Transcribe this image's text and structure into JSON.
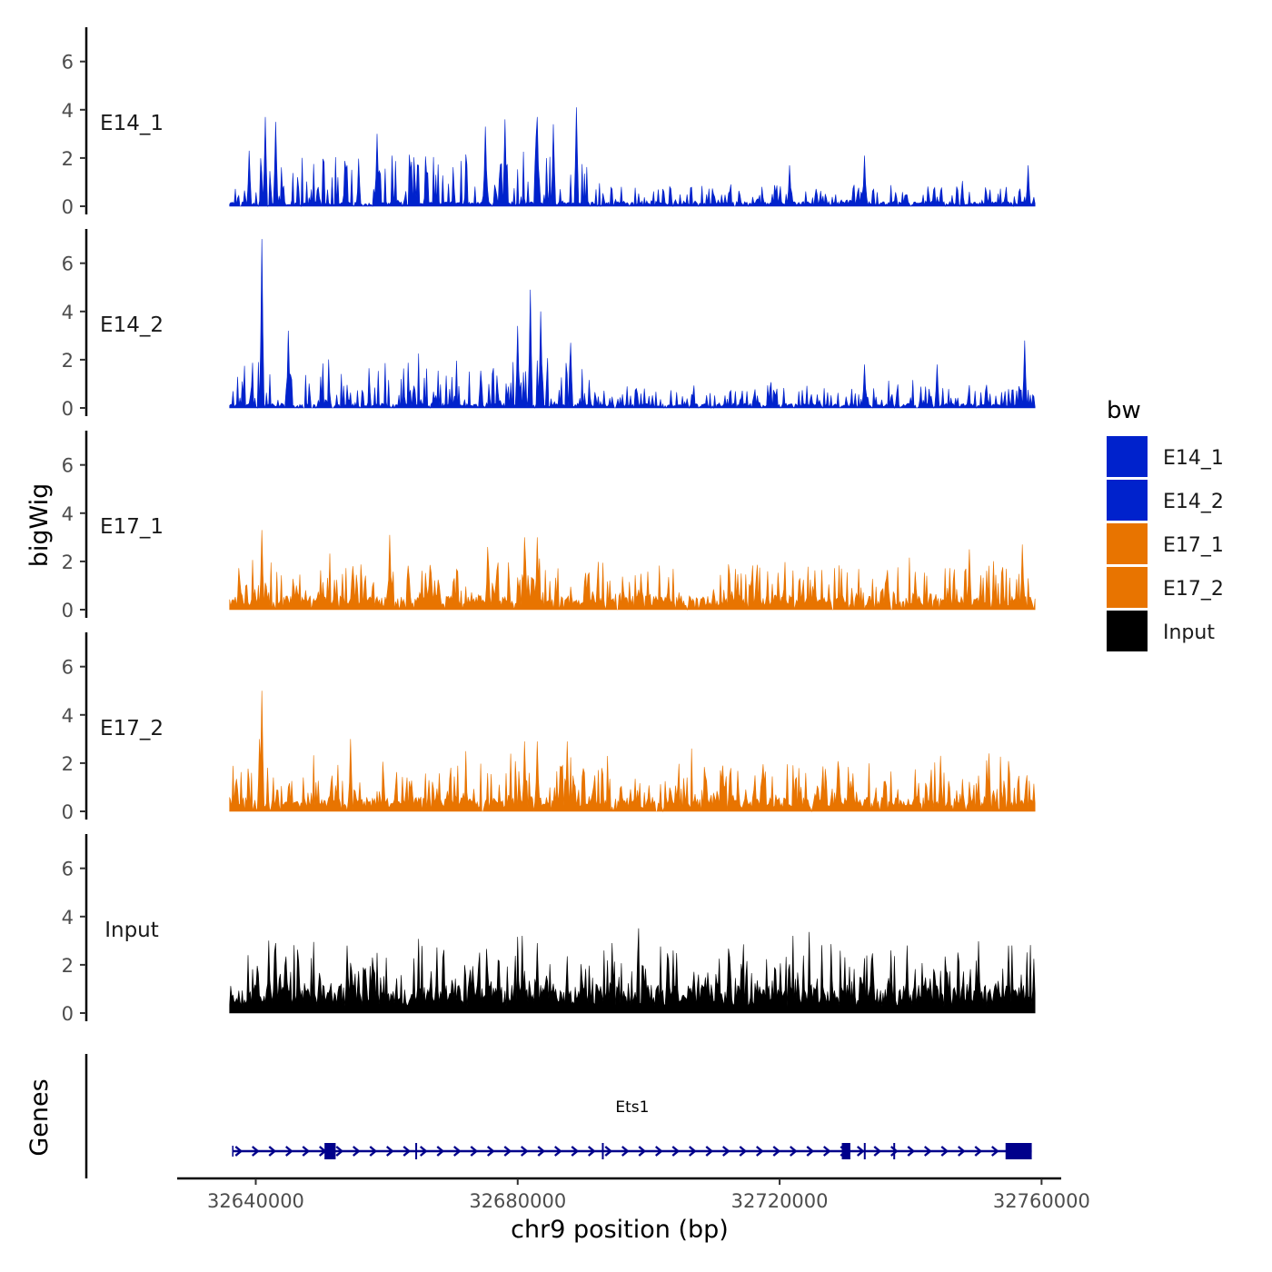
{
  "chart_data": {
    "type": "area",
    "x_axis": {
      "label": "chr9 position (bp)",
      "range": [
        32628000,
        32763000
      ],
      "ticks": [
        32640000,
        32680000,
        32720000,
        32760000
      ],
      "tick_labels": [
        "32640000",
        "32680000",
        "32720000",
        "32760000"
      ]
    },
    "y_axis": {
      "label": "bigWig",
      "range": [
        0,
        7.3
      ],
      "ticks": [
        0,
        2,
        4,
        6
      ],
      "tick_labels": [
        "0",
        "2",
        "4",
        "6"
      ]
    },
    "data_start": 32636000,
    "data_end": 32759000,
    "legend": {
      "title": "bw",
      "position": "right",
      "entries": [
        {
          "label": "E14_1",
          "color": "#0022cc"
        },
        {
          "label": "E14_2",
          "color": "#0022cc"
        },
        {
          "label": "E17_1",
          "color": "#e87400"
        },
        {
          "label": "E17_2",
          "color": "#e87400"
        },
        {
          "label": "Input",
          "color": "#000000"
        }
      ]
    },
    "tracks": [
      {
        "name": "E14_1",
        "color": "#0022cc",
        "baseline": 0.15,
        "noise": 1.0,
        "seed": 11,
        "peaks": [
          {
            "x": 32641500,
            "y": 3.7
          },
          {
            "x": 32643000,
            "y": 3.5
          },
          {
            "x": 32639000,
            "y": 2.3
          },
          {
            "x": 32658500,
            "y": 3.0
          },
          {
            "x": 32675000,
            "y": 3.3
          },
          {
            "x": 32678000,
            "y": 3.6
          },
          {
            "x": 32683000,
            "y": 3.7
          },
          {
            "x": 32685500,
            "y": 3.4
          },
          {
            "x": 32689000,
            "y": 4.1
          },
          {
            "x": 32721500,
            "y": 1.7
          },
          {
            "x": 32733000,
            "y": 2.1
          },
          {
            "x": 32758000,
            "y": 1.7
          }
        ],
        "active_regions": [
          [
            32636000,
            32691000,
            1.0
          ],
          [
            32691000,
            32759000,
            0.35
          ]
        ]
      },
      {
        "name": "E14_2",
        "color": "#0022cc",
        "baseline": 0.15,
        "noise": 1.0,
        "seed": 23,
        "peaks": [
          {
            "x": 32641000,
            "y": 7.0
          },
          {
            "x": 32645000,
            "y": 3.2
          },
          {
            "x": 32682000,
            "y": 4.9
          },
          {
            "x": 32683500,
            "y": 4.0
          },
          {
            "x": 32680000,
            "y": 3.4
          },
          {
            "x": 32688000,
            "y": 2.7
          },
          {
            "x": 32757500,
            "y": 2.8
          },
          {
            "x": 32733000,
            "y": 1.8
          },
          {
            "x": 32744000,
            "y": 1.8
          }
        ],
        "active_regions": [
          [
            32636000,
            32690000,
            0.9
          ],
          [
            32690000,
            32759000,
            0.4
          ]
        ]
      },
      {
        "name": "E17_1",
        "color": "#e87400",
        "baseline": 0.45,
        "noise": 0.9,
        "seed": 37,
        "peaks": [
          {
            "x": 32641000,
            "y": 3.3
          },
          {
            "x": 32660500,
            "y": 3.1
          },
          {
            "x": 32681000,
            "y": 3.0
          },
          {
            "x": 32683000,
            "y": 3.0
          },
          {
            "x": 32675500,
            "y": 2.6
          },
          {
            "x": 32749000,
            "y": 2.5
          },
          {
            "x": 32757000,
            "y": 2.7
          }
        ],
        "active_regions": [
          [
            32636000,
            32759000,
            0.85
          ]
        ]
      },
      {
        "name": "E17_2",
        "color": "#e87400",
        "baseline": 0.45,
        "noise": 0.9,
        "seed": 41,
        "peaks": [
          {
            "x": 32641000,
            "y": 5.0
          },
          {
            "x": 32640500,
            "y": 3.0
          },
          {
            "x": 32654500,
            "y": 3.0
          },
          {
            "x": 32683000,
            "y": 2.9
          },
          {
            "x": 32681000,
            "y": 2.9
          },
          {
            "x": 32687500,
            "y": 2.9
          },
          {
            "x": 32752000,
            "y": 2.4
          },
          {
            "x": 32744500,
            "y": 2.3
          }
        ],
        "active_regions": [
          [
            32636000,
            32759000,
            0.85
          ]
        ]
      },
      {
        "name": "Input",
        "color": "#000000",
        "baseline": 0.9,
        "noise": 1.0,
        "seed": 53,
        "peaks": [
          {
            "x": 32642000,
            "y": 3.0
          },
          {
            "x": 32643000,
            "y": 2.9
          },
          {
            "x": 32683000,
            "y": 2.9
          },
          {
            "x": 32694500,
            "y": 2.9
          },
          {
            "x": 32654000,
            "y": 2.8
          },
          {
            "x": 32737000,
            "y": 2.6
          },
          {
            "x": 32755000,
            "y": 2.8
          }
        ],
        "active_regions": [
          [
            32636000,
            32759000,
            1.0
          ]
        ]
      }
    ],
    "gene_track": {
      "label": "Genes",
      "genes": [
        {
          "name": "Ets1",
          "start": 32636500,
          "end": 32758500,
          "strand": "+",
          "color": "#00008b",
          "exons": [
            [
              32650500,
              32652200
            ],
            [
              32729500,
              32730800
            ],
            [
              32754500,
              32758500
            ]
          ],
          "splice_marks": [
            32664500,
            32693000,
            32733000,
            32737500
          ]
        }
      ]
    }
  }
}
